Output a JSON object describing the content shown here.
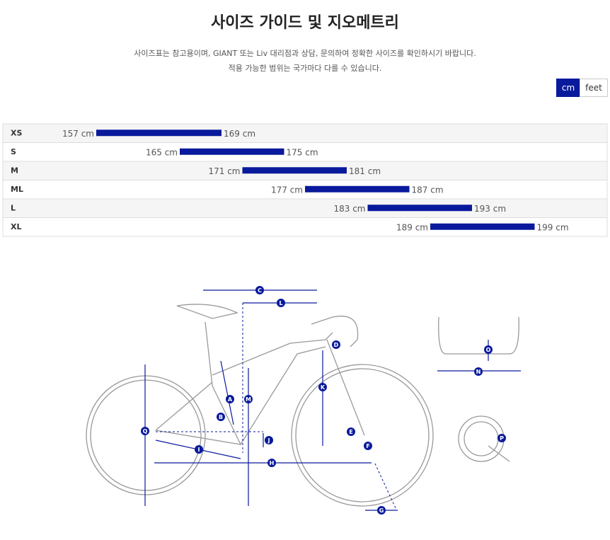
{
  "header": {
    "title": "사이즈 가이드 및 지오메트리",
    "notes": [
      "사이즈표는 참고용이며, GIANT 또는 Liv 대리점과 상담, 문의하여 정확한 사이즈를 확인하시기 바랍니다.",
      "적용 가능한 범위는 국가마다 다를 수 있습니다."
    ]
  },
  "units": [
    "cm",
    "feet"
  ],
  "sizes": {
    "color": "#0a1a9c",
    "rows": [
      {
        "size": "XS",
        "min": {
          "value": 157,
          "label": "157 cm"
        },
        "max": {
          "value": 169,
          "label": "169 cm"
        }
      },
      {
        "size": "S",
        "min": {
          "value": 165,
          "label": "165 cm"
        },
        "max": {
          "value": 175,
          "label": "175 cm"
        }
      },
      {
        "size": "M",
        "min": {
          "value": 171,
          "label": "171 cm"
        },
        "max": {
          "value": 181,
          "label": "181 cm"
        }
      },
      {
        "size": "ML",
        "min": {
          "value": 177,
          "label": "177 cm"
        },
        "max": {
          "value": 187,
          "label": "187 cm"
        }
      },
      {
        "size": "L",
        "min": {
          "value": 183,
          "label": "183 cm"
        },
        "max": {
          "value": 193,
          "label": "193 cm"
        }
      },
      {
        "size": "XL",
        "min": {
          "value": 189,
          "label": "189 cm"
        },
        "max": {
          "value": 199,
          "label": "199 cm"
        }
      }
    ]
  },
  "geometry_labels": [
    "A",
    "B",
    "C",
    "D",
    "E",
    "F",
    "G",
    "H",
    "I",
    "J",
    "K",
    "L",
    "M",
    "N",
    "O",
    "P",
    "Q"
  ]
}
